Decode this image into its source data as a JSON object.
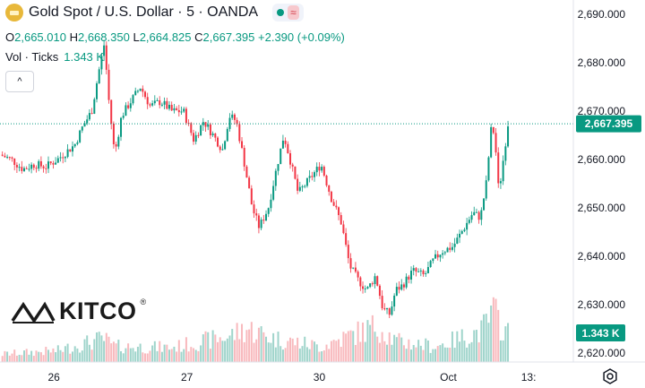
{
  "header": {
    "title": "Gold Spot / U.S. Dollar · 5 · OANDA",
    "icon": "gold-bar-icon",
    "status_icon": "market-open-dot-icon",
    "wave_badge": "≈"
  },
  "ohlc": {
    "open_label": "O",
    "open": "2,665.010",
    "high_label": "H",
    "high": "2,668.350",
    "low_label": "L",
    "low": "2,664.825",
    "close_label": "C",
    "close": "2,667.395",
    "change": "+2.390 (+0.09%)"
  },
  "volume": {
    "label": "Vol · Ticks",
    "value": "1.343 K"
  },
  "collapse_glyph": "^",
  "logo": {
    "text": "KITCO",
    "reg": "®"
  },
  "price_badge": "2,667.395",
  "volume_badge": "1.343 K",
  "colors": {
    "up": "#089981",
    "down": "#f23645",
    "vol_up": "#9fd4cb",
    "vol_down": "#f8b9bd",
    "badge": "#089981"
  },
  "chart_data": {
    "type": "candlestick",
    "title": "Gold Spot / U.S. Dollar · 5 · OANDA",
    "y_ticks": [
      "2,690.000",
      "2,680.000",
      "2,670.000",
      "2,660.000",
      "2,650.000",
      "2,640.000",
      "2,630.000",
      "2,620.000"
    ],
    "ylim": [
      2620,
      2690
    ],
    "x_ticks": [
      {
        "label": "26",
        "t": 0.094
      },
      {
        "label": "27",
        "t": 0.326
      },
      {
        "label": "30",
        "t": 0.557
      },
      {
        "label": "Oct",
        "t": 0.782
      },
      {
        "label": "13:",
        "t": 0.922
      }
    ],
    "last_price": 2667.395,
    "price_path": [
      [
        0.0,
        2661.0
      ],
      [
        0.02,
        2660.0
      ],
      [
        0.04,
        2658.0
      ],
      [
        0.06,
        2659.0
      ],
      [
        0.08,
        2658.5
      ],
      [
        0.1,
        2660.0
      ],
      [
        0.115,
        2661.5
      ],
      [
        0.13,
        2663.0
      ],
      [
        0.145,
        2667.0
      ],
      [
        0.16,
        2670.0
      ],
      [
        0.172,
        2678.0
      ],
      [
        0.182,
        2684.0
      ],
      [
        0.19,
        2672.0
      ],
      [
        0.2,
        2661.0
      ],
      [
        0.212,
        2669.0
      ],
      [
        0.228,
        2672.0
      ],
      [
        0.245,
        2675.0
      ],
      [
        0.262,
        2671.0
      ],
      [
        0.28,
        2672.0
      ],
      [
        0.3,
        2670.0
      ],
      [
        0.32,
        2670.0
      ],
      [
        0.338,
        2664.0
      ],
      [
        0.355,
        2668.0
      ],
      [
        0.372,
        2665.0
      ],
      [
        0.388,
        2662.0
      ],
      [
        0.4,
        2669.0
      ],
      [
        0.412,
        2668.0
      ],
      [
        0.425,
        2660.0
      ],
      [
        0.44,
        2650.0
      ],
      [
        0.452,
        2646.0
      ],
      [
        0.468,
        2650.0
      ],
      [
        0.482,
        2658.0
      ],
      [
        0.495,
        2665.0
      ],
      [
        0.508,
        2659.0
      ],
      [
        0.52,
        2653.0
      ],
      [
        0.54,
        2656.0
      ],
      [
        0.56,
        2659.0
      ],
      [
        0.578,
        2652.0
      ],
      [
        0.595,
        2647.0
      ],
      [
        0.61,
        2638.0
      ],
      [
        0.625,
        2635.0
      ],
      [
        0.64,
        2633.0
      ],
      [
        0.655,
        2636.0
      ],
      [
        0.668,
        2629.0
      ],
      [
        0.68,
        2628.0
      ],
      [
        0.69,
        2633.0
      ],
      [
        0.702,
        2634.0
      ],
      [
        0.72,
        2637.0
      ],
      [
        0.74,
        2636.0
      ],
      [
        0.755,
        2639.0
      ],
      [
        0.77,
        2641.0
      ],
      [
        0.79,
        2642.0
      ],
      [
        0.81,
        2646.0
      ],
      [
        0.825,
        2649.0
      ],
      [
        0.838,
        2648.0
      ],
      [
        0.848,
        2655.0
      ],
      [
        0.858,
        2668.0
      ],
      [
        0.864,
        2663.0
      ],
      [
        0.87,
        2653.0
      ],
      [
        0.88,
        2662.0
      ],
      [
        0.886,
        2667.4
      ]
    ],
    "volume_path": [
      [
        0.0,
        0.15
      ],
      [
        0.1,
        0.22
      ],
      [
        0.18,
        0.45
      ],
      [
        0.2,
        0.3
      ],
      [
        0.3,
        0.28
      ],
      [
        0.4,
        0.5
      ],
      [
        0.43,
        0.65
      ],
      [
        0.48,
        0.45
      ],
      [
        0.56,
        0.3
      ],
      [
        0.62,
        0.55
      ],
      [
        0.66,
        0.7
      ],
      [
        0.69,
        0.4
      ],
      [
        0.76,
        0.3
      ],
      [
        0.84,
        0.6
      ],
      [
        0.86,
        0.95
      ],
      [
        0.886,
        0.55
      ]
    ]
  }
}
